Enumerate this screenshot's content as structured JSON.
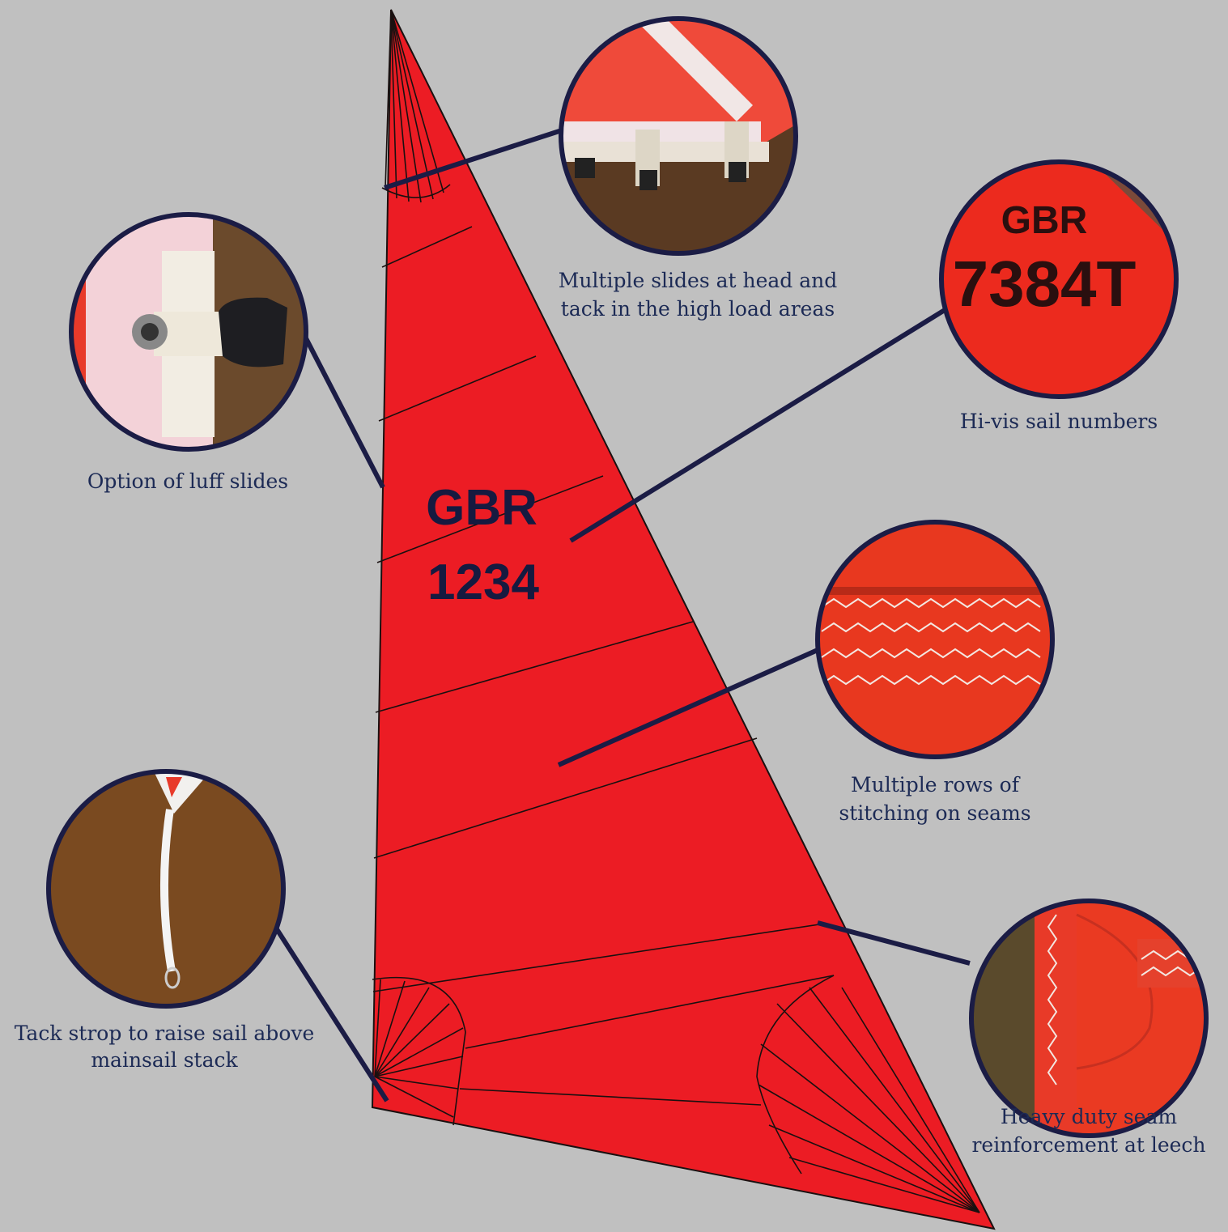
{
  "sail": {
    "sail_number": [
      "GBR",
      "1234"
    ]
  },
  "callouts": [
    {
      "lines": [
        "Multiple slides at head and",
        "tack in the high load areas"
      ]
    },
    {
      "lines": [
        "Option of luff slides"
      ]
    },
    {
      "lines": [
        "Hi-vis sail numbers"
      ],
      "photo_text": [
        "GBR",
        "7384T"
      ]
    },
    {
      "lines": [
        "Multiple rows of",
        "stitching on seams"
      ]
    },
    {
      "lines": [
        "Tack strop to raise sail above",
        "mainsail stack"
      ]
    },
    {
      "lines": [
        "Heavy duty seam",
        "reinforcement at leech"
      ]
    }
  ]
}
